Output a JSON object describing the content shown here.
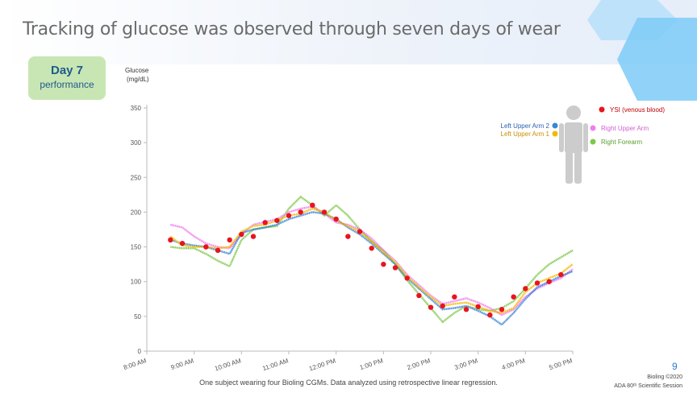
{
  "title": "Tracking of glucose was observed through seven days of wear",
  "badge": {
    "line1": "Day 7",
    "line2": "performance"
  },
  "footnote": "One subject wearing four Bioling CGMs. Data analyzed using retrospective linear regression.",
  "page_number": "9",
  "copyright": "Bioling ©2020",
  "session": "ADA 80ᵗʰ Scientific Session",
  "colors": {
    "ysi": "#e8141e",
    "left_upper_arm_2": "#3a86d8",
    "left_upper_arm_1": "#f5b800",
    "right_upper_arm": "#f07ef0",
    "right_forearm": "#7ec84a",
    "body_figure": "#cccccc",
    "hex_light": "#bfe2fb",
    "hex_mid": "#7ecbf7"
  },
  "icons": {
    "body_figure": "human-figure-icon"
  },
  "chart_data": {
    "type": "line",
    "ylabel": "Glucose (mg/dL)",
    "ylabel_line1": "Glucose",
    "ylabel_line2": "(mg/dL)",
    "ylim": [
      0,
      350
    ],
    "yticks": [
      "0",
      "50",
      "100",
      "150",
      "200",
      "250",
      "300",
      "350"
    ],
    "xlim": [
      8,
      17
    ],
    "xticks": [
      "8:00 AM",
      "9:00 AM",
      "10:00 AM",
      "11:00 AM",
      "12:00 PM",
      "1:00 PM",
      "2:00 PM",
      "3:00 PM",
      "4:00 PM",
      "5:00 PM"
    ],
    "legend_placement": "top-right",
    "series": [
      {
        "name": "Left Upper Arm 2",
        "x": [
          8.5,
          8.75,
          9.0,
          9.25,
          9.5,
          9.75,
          10.0,
          10.25,
          10.5,
          10.75,
          11.0,
          11.25,
          11.5,
          11.75,
          12.0,
          12.25,
          12.5,
          12.75,
          13.0,
          13.25,
          13.5,
          13.75,
          14.0,
          14.25,
          14.5,
          14.75,
          15.0,
          15.25,
          15.5,
          15.75,
          16.0,
          16.25,
          16.5,
          16.75,
          17.0
        ],
        "y": [
          160,
          155,
          152,
          150,
          145,
          140,
          170,
          175,
          178,
          182,
          190,
          195,
          200,
          198,
          190,
          178,
          168,
          155,
          140,
          125,
          105,
          90,
          75,
          60,
          62,
          65,
          58,
          50,
          38,
          55,
          75,
          92,
          100,
          108,
          115
        ]
      },
      {
        "name": "Left Upper Arm 1",
        "x": [
          8.5,
          8.75,
          9.0,
          9.25,
          9.5,
          9.75,
          10.0,
          10.25,
          10.5,
          10.75,
          11.0,
          11.25,
          11.5,
          11.75,
          12.0,
          12.25,
          12.5,
          12.75,
          13.0,
          13.25,
          13.5,
          13.75,
          14.0,
          14.25,
          14.5,
          14.75,
          15.0,
          15.25,
          15.5,
          15.75,
          16.0,
          16.25,
          16.5,
          16.75,
          17.0
        ],
        "y": [
          165,
          152,
          150,
          150,
          148,
          150,
          172,
          180,
          182,
          188,
          195,
          198,
          205,
          200,
          188,
          180,
          172,
          158,
          142,
          128,
          108,
          92,
          78,
          65,
          68,
          70,
          64,
          58,
          55,
          62,
          85,
          98,
          105,
          112,
          125
        ]
      },
      {
        "name": "Right Upper Arm",
        "x": [
          8.5,
          8.75,
          9.0,
          9.25,
          9.5,
          9.75,
          10.0,
          10.25,
          10.5,
          10.75,
          11.0,
          11.25,
          11.5,
          11.75,
          12.0,
          12.25,
          12.5,
          12.75,
          13.0,
          13.25,
          13.5,
          13.75,
          14.0,
          14.25,
          14.5,
          14.75,
          15.0,
          15.25,
          15.5,
          15.75,
          16.0,
          16.25,
          16.5,
          16.75,
          17.0
        ],
        "y": [
          182,
          178,
          165,
          155,
          150,
          148,
          168,
          182,
          186,
          190,
          200,
          205,
          208,
          198,
          185,
          182,
          175,
          162,
          145,
          130,
          110,
          95,
          80,
          68,
          72,
          76,
          70,
          62,
          52,
          60,
          78,
          90,
          98,
          105,
          118
        ]
      },
      {
        "name": "Right Forearm",
        "x": [
          8.5,
          8.75,
          9.0,
          9.25,
          9.5,
          9.75,
          10.0,
          10.25,
          10.5,
          10.75,
          11.0,
          11.25,
          11.5,
          11.75,
          12.0,
          12.25,
          12.5,
          12.75,
          13.0,
          13.25,
          13.5,
          13.75,
          14.0,
          14.25,
          14.5,
          14.75,
          15.0,
          15.25,
          15.5,
          15.75,
          16.0,
          16.25,
          16.5,
          16.75,
          17.0
        ],
        "y": [
          150,
          148,
          148,
          140,
          130,
          122,
          160,
          175,
          178,
          180,
          205,
          222,
          210,
          195,
          210,
          195,
          175,
          158,
          145,
          125,
          102,
          82,
          62,
          42,
          55,
          65,
          60,
          58,
          62,
          72,
          90,
          110,
          125,
          135,
          145
        ]
      },
      {
        "name": "YSI (venous blood)",
        "x": [
          8.5,
          8.75,
          9.25,
          9.5,
          9.75,
          10.0,
          10.25,
          10.5,
          10.75,
          11.0,
          11.25,
          11.5,
          11.75,
          12.0,
          12.25,
          12.5,
          12.75,
          13.0,
          13.25,
          13.5,
          13.75,
          14.0,
          14.25,
          14.5,
          14.75,
          15.0,
          15.25,
          15.5,
          15.75,
          16.0,
          16.25,
          16.5,
          16.75
        ],
        "y": [
          160,
          155,
          150,
          145,
          160,
          168,
          165,
          185,
          188,
          195,
          200,
          210,
          200,
          190,
          165,
          172,
          148,
          125,
          120,
          105,
          80,
          63,
          65,
          78,
          60,
          64,
          52,
          60,
          78,
          90,
          98,
          100,
          110
        ]
      }
    ]
  }
}
